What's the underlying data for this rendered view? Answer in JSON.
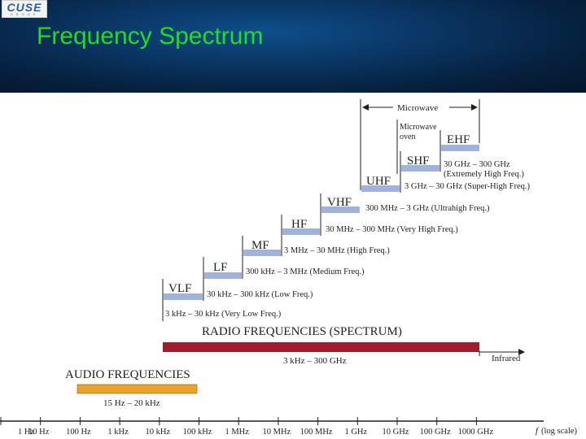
{
  "header": {
    "title": "Frequency Spectrum",
    "logo_text": "CUSE",
    "logo_subtext": "GROUP"
  },
  "colors": {
    "title_green": "#22dd22",
    "band_blue": "#9fb3dd",
    "radio_bar": "#a01c2c",
    "audio_bar": "#e8a52a",
    "header_blue": "#0a3766"
  },
  "microwave": {
    "label": "Microwave",
    "oven_line1": "Microwave",
    "oven_line2": "oven"
  },
  "bands": [
    {
      "name": "VLF",
      "range": "3 kHz – 30 kHz (Very Low Freq.)"
    },
    {
      "name": "LF",
      "range": "30 kHz – 300 kHz (Low Freq.)"
    },
    {
      "name": "MF",
      "range": "300 kHz – 3 MHz (Medium Freq.)"
    },
    {
      "name": "HF",
      "range": "3 MHz – 30 MHz (High Freq.)"
    },
    {
      "name": "VHF",
      "range": "30 MHz – 300 MHz (Very High Freq.)"
    },
    {
      "name": "UHF",
      "range": "300 MHz – 3 GHz (Ultrahigh Freq.)"
    },
    {
      "name": "SHF",
      "range": "3 GHz – 30 GHz (Super-High Freq.)"
    },
    {
      "name": "EHF",
      "range_line1": "30 GHz – 300 GHz",
      "range_line2": "(Extremely High Freq.)"
    }
  ],
  "radio": {
    "title": "RADIO FREQUENCIES (SPECTRUM)",
    "range": "3 kHz – 300 GHz",
    "infrared": "Infrared"
  },
  "audio": {
    "title": "AUDIO FREQUENCIES",
    "range": "15 Hz – 20 kHz"
  },
  "axis": {
    "ticks": [
      "1 Hz",
      "10 Hz",
      "100 Hz",
      "1 kHz",
      "10 kHz",
      "100 kHz",
      "1 MHz",
      "10 MHz",
      "100 MHz",
      "1 GHz",
      "10 GHz",
      "100 GHz",
      "1000 GHz"
    ],
    "f_label": "f",
    "scale_label": "(log scale)"
  }
}
